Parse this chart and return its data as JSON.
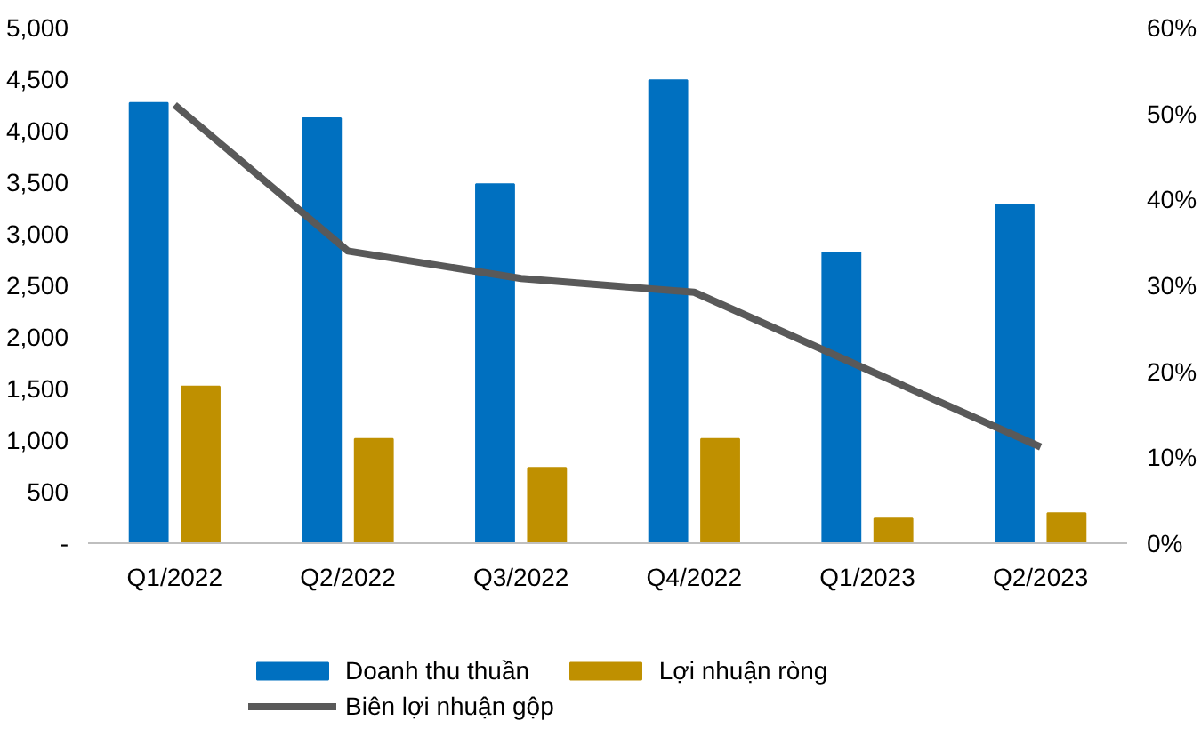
{
  "chart_data": {
    "type": "bar",
    "categories": [
      "Q1/2022",
      "Q2/2022",
      "Q3/2022",
      "Q4/2022",
      "Q1/2023",
      "Q2/2023"
    ],
    "series": [
      {
        "name": "Doanh thu thuần",
        "color": "#0070c0",
        "values": [
          4270,
          4120,
          3480,
          4490,
          2820,
          3280
        ]
      },
      {
        "name": "Lợi nhuận ròng",
        "color": "#bf9000",
        "values": [
          1520,
          1010,
          730,
          1010,
          240,
          290
        ]
      },
      {
        "name": "Biên lợi nhuận gộp",
        "type": "line",
        "axis": "y2",
        "color": "#595959",
        "values": [
          51,
          34,
          30.8,
          29.2,
          20.2,
          11.2
        ]
      }
    ],
    "ylim": [
      0,
      5000
    ],
    "yticks": [
      {
        "value": 0,
        "label": "-"
      },
      {
        "value": 500,
        "label": "500"
      },
      {
        "value": 1000,
        "label": "1,000"
      },
      {
        "value": 1500,
        "label": "1,500"
      },
      {
        "value": 2000,
        "label": "2,000"
      },
      {
        "value": 2500,
        "label": "2,500"
      },
      {
        "value": 3000,
        "label": "3,000"
      },
      {
        "value": 3500,
        "label": "3,500"
      },
      {
        "value": 4000,
        "label": "4,000"
      },
      {
        "value": 4500,
        "label": "4,500"
      },
      {
        "value": 5000,
        "label": "5,000"
      }
    ],
    "y2lim": [
      0,
      60
    ],
    "y2ticks": [
      {
        "value": 0,
        "label": "0%"
      },
      {
        "value": 10,
        "label": "10%"
      },
      {
        "value": 20,
        "label": "20%"
      },
      {
        "value": 30,
        "label": "30%"
      },
      {
        "value": 40,
        "label": "40%"
      },
      {
        "value": 50,
        "label": "50%"
      },
      {
        "value": 60,
        "label": "60%"
      }
    ],
    "legend": "bottom",
    "grid": false
  }
}
